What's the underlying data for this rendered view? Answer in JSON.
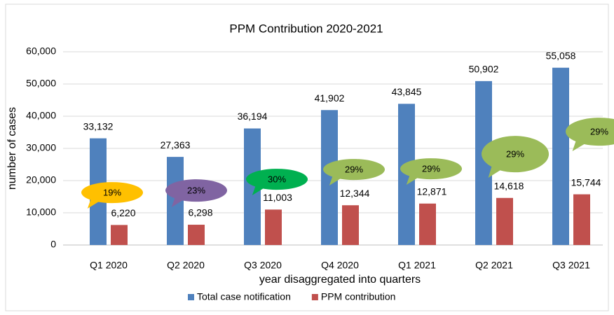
{
  "chart_data": {
    "type": "bar",
    "title": "PPM Contribution 2020-2021",
    "x_label": "year disaggregated into quarters",
    "y_label": "number of cases",
    "categories": [
      "Q1 2020",
      "Q2 2020",
      "Q3 2020",
      "Q4 2020",
      "Q1 2021",
      "Q2 2021",
      "Q3 2021"
    ],
    "series": [
      {
        "name": "Total case notification",
        "color": "#4f81bd",
        "values": [
          33132,
          27363,
          36194,
          41902,
          43845,
          50902,
          55058
        ],
        "value_labels": [
          "33,132",
          "27,363",
          "36,194",
          "41,902",
          "43,845",
          "50,902",
          "55,058"
        ]
      },
      {
        "name": "PPM contribution",
        "color": "#c0504d",
        "values": [
          6220,
          6298,
          11003,
          12344,
          12871,
          14618,
          15744
        ],
        "value_labels": [
          "6,220",
          "6,298",
          "11,003",
          "12,344",
          "12,871",
          "14,618",
          "15,744"
        ]
      }
    ],
    "annotations": [
      {
        "text": "19%",
        "color": "#ffc000"
      },
      {
        "text": "23%",
        "color": "#8064a2"
      },
      {
        "text": "30%",
        "color": "#00b050"
      },
      {
        "text": "29%",
        "color": "#9bbb59"
      },
      {
        "text": "29%",
        "color": "#9bbb59"
      },
      {
        "text": "29%",
        "color": "#9bbb59"
      },
      {
        "text": "29%",
        "color": "#9bbb59"
      }
    ],
    "ylim": [
      0,
      60000
    ],
    "yticks": [
      0,
      {
        "value": 10000,
        "label": "10,000"
      },
      {
        "value": 20000,
        "label": "20,000"
      },
      {
        "value": 30000,
        "label": "30,000"
      },
      {
        "value": 40000,
        "label": "40,000"
      },
      {
        "value": 50000,
        "label": "50,000"
      },
      {
        "value": 60000,
        "label": "60,000"
      }
    ],
    "grid": true,
    "legend": "bottom"
  }
}
